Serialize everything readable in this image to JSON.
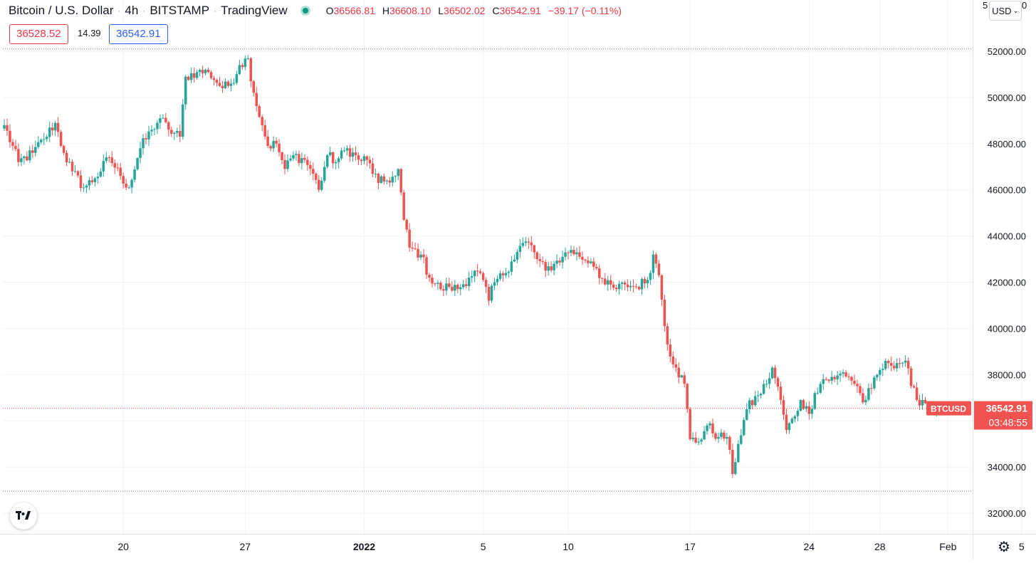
{
  "header": {
    "symbol": "Bitcoin / U.S. Dollar",
    "interval": "4h",
    "exchange": "BITSTAMP",
    "source": "TradingView",
    "open_label": "O",
    "open": "36566.81",
    "high_label": "H",
    "high": "36608.10",
    "low_label": "L",
    "low": "36502.02",
    "close_label": "C",
    "close": "36542.91",
    "change": "−39.17 (−0.11%)"
  },
  "quote": {
    "bid": "36528.52",
    "spread": "14.39",
    "ask": "36542.91"
  },
  "currency": {
    "selected": "USD"
  },
  "scale_top_clipped": "5",
  "scale_top_clipped2": "0",
  "last_price": {
    "symbol_tag": "BTCUSD",
    "price": "36542.91",
    "countdown": "03:48:55"
  },
  "icons": {
    "logo": "tradingview-logo-icon",
    "settings": "gear-icon",
    "live": "live-status-dot-icon",
    "dropdown": "chevron-down-icon"
  },
  "colors": {
    "up": "#26a69a",
    "down": "#ef5350",
    "label_bg": "#f05350",
    "grid": "#f0f3fa"
  },
  "chart_data": {
    "type": "candlestick",
    "title": "",
    "xlabel": "",
    "ylabel": "",
    "ylim": [
      31200,
      52500
    ],
    "y_ticks": [
      "32000.00",
      "34000.00",
      "36000.00",
      "38000.00",
      "40000.00",
      "42000.00",
      "44000.00",
      "46000.00",
      "48000.00",
      "50000.00",
      "52000.00"
    ],
    "x_ticks": [
      "20",
      "27",
      "2022",
      "5",
      "10",
      "17",
      "24",
      "28",
      "Feb",
      "5"
    ],
    "x_tick_bold": [
      false,
      false,
      true,
      false,
      false,
      false,
      false,
      false,
      false,
      false
    ],
    "x_tick_candle_index": [
      42,
      85,
      127,
      169,
      199,
      242,
      284,
      309,
      333,
      359
    ],
    "reference_lines": {
      "high": 52100,
      "low": 32950,
      "last": 36543
    },
    "anchors": [
      [
        0,
        48800
      ],
      [
        5,
        47200
      ],
      [
        10,
        47600
      ],
      [
        14,
        48200
      ],
      [
        18,
        48900
      ],
      [
        21,
        47600
      ],
      [
        24,
        46800
      ],
      [
        28,
        46100
      ],
      [
        32,
        46500
      ],
      [
        37,
        47400
      ],
      [
        41,
        46600
      ],
      [
        44,
        46100
      ],
      [
        48,
        47800
      ],
      [
        52,
        48600
      ],
      [
        55,
        49100
      ],
      [
        58,
        48600
      ],
      [
        62,
        48300
      ],
      [
        64,
        50900
      ],
      [
        68,
        51100
      ],
      [
        72,
        51100
      ],
      [
        77,
        50400
      ],
      [
        80,
        50600
      ],
      [
        83,
        51400
      ],
      [
        86,
        51700
      ],
      [
        88,
        50200
      ],
      [
        91,
        48800
      ],
      [
        93,
        47900
      ],
      [
        96,
        48000
      ],
      [
        99,
        46900
      ],
      [
        102,
        47500
      ],
      [
        106,
        47300
      ],
      [
        109,
        46700
      ],
      [
        111,
        46000
      ],
      [
        114,
        47500
      ],
      [
        117,
        47200
      ],
      [
        121,
        47800
      ],
      [
        125,
        47300
      ],
      [
        128,
        47300
      ],
      [
        132,
        46300
      ],
      [
        135,
        46400
      ],
      [
        138,
        46600
      ],
      [
        139,
        46900
      ],
      [
        141,
        44700
      ],
      [
        143,
        43500
      ],
      [
        147,
        43200
      ],
      [
        150,
        42200
      ],
      [
        154,
        41700
      ],
      [
        157,
        41800
      ],
      [
        160,
        41700
      ],
      [
        164,
        42200
      ],
      [
        166,
        42500
      ],
      [
        169,
        42100
      ],
      [
        171,
        41200
      ],
      [
        173,
        42000
      ],
      [
        176,
        42300
      ],
      [
        179,
        42900
      ],
      [
        183,
        43700
      ],
      [
        186,
        43600
      ],
      [
        188,
        43000
      ],
      [
        191,
        42500
      ],
      [
        194,
        42800
      ],
      [
        197,
        43100
      ],
      [
        200,
        43400
      ],
      [
        203,
        43100
      ],
      [
        207,
        42900
      ],
      [
        209,
        42600
      ],
      [
        212,
        41900
      ],
      [
        216,
        41700
      ],
      [
        219,
        41900
      ],
      [
        223,
        41800
      ],
      [
        227,
        42100
      ],
      [
        229,
        43200
      ],
      [
        231,
        42300
      ],
      [
        234,
        39300
      ],
      [
        237,
        38300
      ],
      [
        240,
        37600
      ],
      [
        242,
        35200
      ],
      [
        245,
        35100
      ],
      [
        248,
        35800
      ],
      [
        252,
        35300
      ],
      [
        255,
        35300
      ],
      [
        257,
        33700
      ],
      [
        259,
        35000
      ],
      [
        262,
        36500
      ],
      [
        266,
        37100
      ],
      [
        269,
        37600
      ],
      [
        271,
        38300
      ],
      [
        274,
        36900
      ],
      [
        276,
        35600
      ],
      [
        279,
        36200
      ],
      [
        281,
        36900
      ],
      [
        284,
        36300
      ],
      [
        286,
        37200
      ],
      [
        289,
        37800
      ],
      [
        293,
        37800
      ],
      [
        296,
        38100
      ],
      [
        298,
        37900
      ],
      [
        301,
        37500
      ],
      [
        303,
        36800
      ],
      [
        306,
        37400
      ],
      [
        309,
        38200
      ],
      [
        312,
        38500
      ],
      [
        315,
        38500
      ],
      [
        318,
        38600
      ],
      [
        320,
        37500
      ],
      [
        322,
        36900
      ],
      [
        324,
        36900
      ],
      [
        327,
        36600
      ],
      [
        329,
        36550
      ]
    ],
    "candle_count": 330,
    "last_close": 36542.91
  }
}
